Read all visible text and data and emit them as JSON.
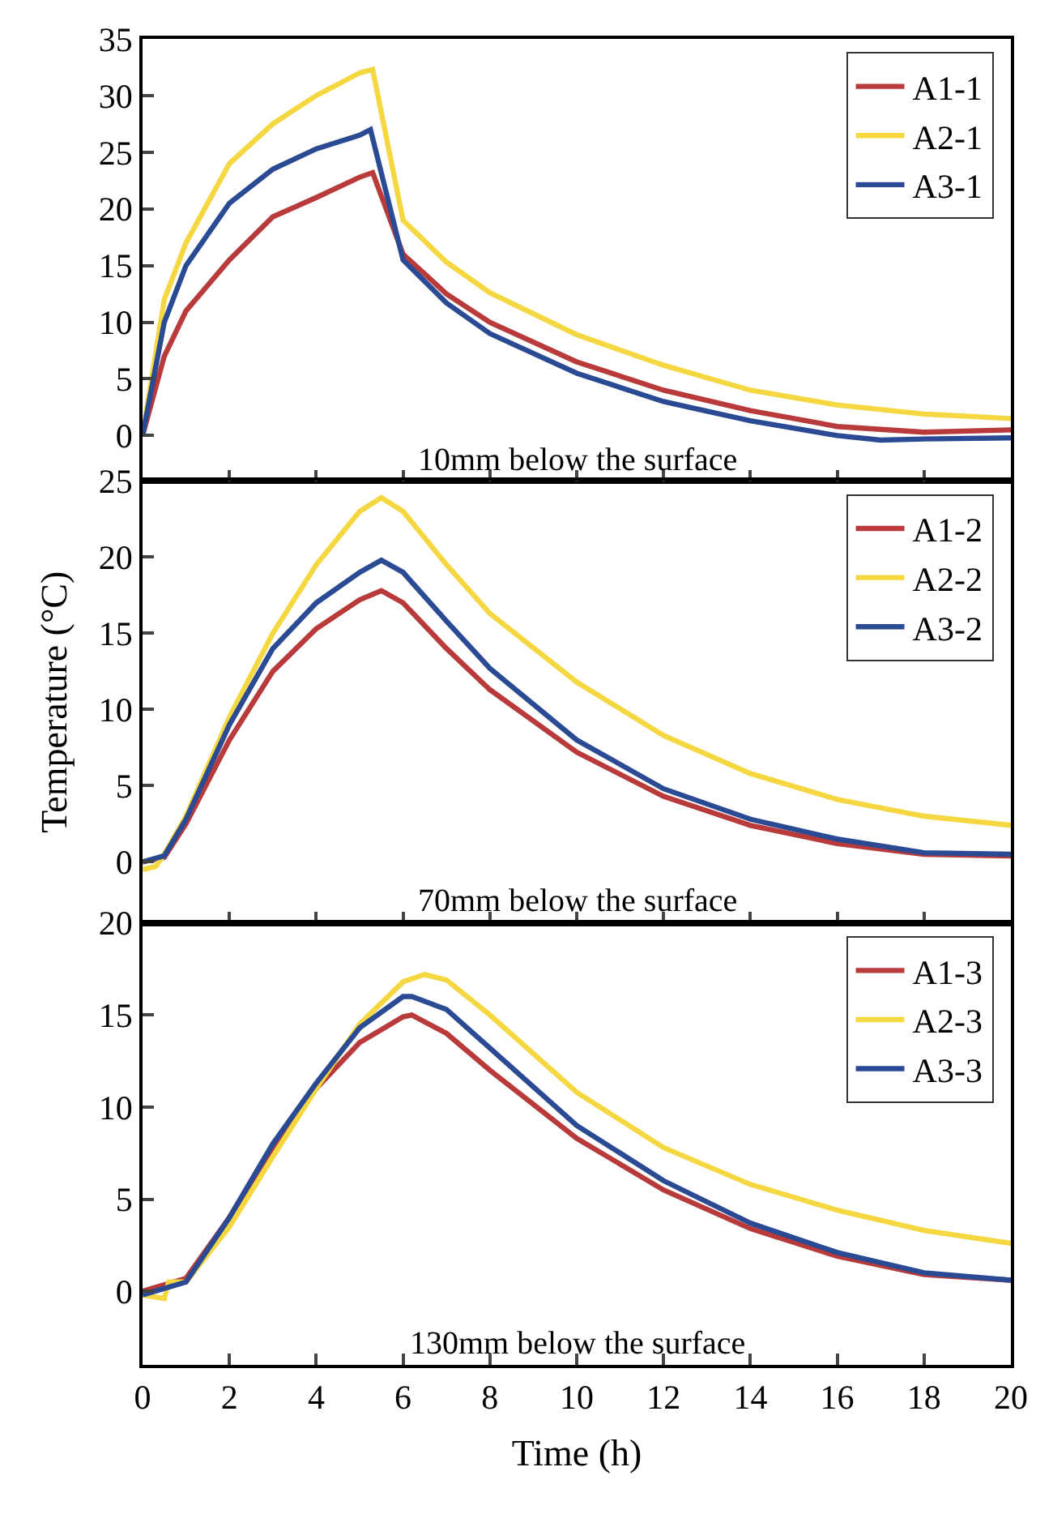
{
  "chart_data": [
    {
      "type": "line",
      "annotations": [
        "10mm below the surface"
      ],
      "xlim": [
        0,
        20
      ],
      "xticks": [
        0,
        2,
        4,
        6,
        8,
        10,
        12,
        14,
        16,
        18,
        20
      ],
      "ylim": [
        -4,
        35
      ],
      "yticks": [
        0,
        5,
        10,
        15,
        20,
        25,
        30,
        35
      ],
      "tick_labels": "y",
      "legend": "top right",
      "grid": false,
      "marker": "none",
      "line_style": "solid",
      "series": [
        {
          "name": "A1-1",
          "color": "#b83a3a",
          "x": [
            0,
            0.5,
            1,
            2,
            3,
            4,
            5,
            5.3,
            6,
            7,
            8,
            10,
            12,
            14,
            16,
            18,
            20
          ],
          "values": [
            0,
            7,
            11,
            15.5,
            19.3,
            21,
            22.8,
            23.2,
            16,
            12.5,
            10,
            6.5,
            4,
            2.2,
            0.8,
            0.3,
            0.5
          ]
        },
        {
          "name": "A2-1",
          "color": "#f5d742",
          "x": [
            0,
            0.5,
            1,
            2,
            3,
            4,
            5,
            5.3,
            6,
            7,
            8,
            10,
            12,
            14,
            16,
            18,
            20
          ],
          "values": [
            0,
            12,
            17,
            24,
            27.5,
            30,
            32,
            32.3,
            19,
            15.3,
            12.6,
            8.9,
            6.2,
            4,
            2.7,
            1.9,
            1.5
          ]
        },
        {
          "name": "A3-1",
          "color": "#2a4a94",
          "x": [
            0,
            0.5,
            1,
            2,
            3,
            4,
            5,
            5.25,
            6,
            7,
            8,
            10,
            12,
            14,
            16,
            17,
            18,
            20
          ],
          "values": [
            0,
            10,
            15,
            20.5,
            23.5,
            25.3,
            26.5,
            27,
            15.5,
            11.7,
            9,
            5.5,
            3,
            1.3,
            0,
            -0.4,
            -0.3,
            -0.2
          ]
        }
      ]
    },
    {
      "type": "line",
      "ylabel": "Temperature (°C)",
      "annotations": [
        "70mm below the surface"
      ],
      "xlim": [
        0,
        20
      ],
      "xticks": [
        0,
        2,
        4,
        6,
        8,
        10,
        12,
        14,
        16,
        18,
        20
      ],
      "ylim": [
        -4,
        25
      ],
      "yticks": [
        0,
        5,
        10,
        15,
        20,
        25
      ],
      "tick_labels": "y",
      "legend": "top right",
      "grid": false,
      "marker": "none",
      "line_style": "solid",
      "series": [
        {
          "name": "A1-2",
          "color": "#b83a3a",
          "x": [
            0,
            0.5,
            1,
            2,
            3,
            4,
            5,
            5.5,
            6,
            7,
            8,
            10,
            12,
            14,
            16,
            18,
            20
          ],
          "values": [
            0,
            0.3,
            2.5,
            8,
            12.5,
            15.3,
            17.2,
            17.8,
            17,
            14,
            11.3,
            7.2,
            4.3,
            2.4,
            1.2,
            0.5,
            0.4
          ]
        },
        {
          "name": "A2-2",
          "color": "#f5d742",
          "x": [
            0,
            0.3,
            0.5,
            1,
            2,
            3,
            4,
            5,
            5.5,
            6,
            7,
            8,
            10,
            12,
            14,
            16,
            18,
            20
          ],
          "values": [
            -0.5,
            -0.3,
            0.5,
            3,
            9.5,
            15,
            19.5,
            23,
            23.9,
            23,
            19.5,
            16.3,
            11.8,
            8.3,
            5.8,
            4.1,
            3,
            2.4
          ]
        },
        {
          "name": "A3-2",
          "color": "#2a4a94",
          "x": [
            0,
            0.5,
            1,
            2,
            3,
            4,
            5,
            5.5,
            6,
            7,
            8,
            10,
            12,
            14,
            16,
            18,
            20
          ],
          "values": [
            0,
            0.4,
            2.8,
            9,
            14,
            17,
            19,
            19.8,
            19,
            15.8,
            12.7,
            8,
            4.8,
            2.8,
            1.5,
            0.6,
            0.5
          ]
        }
      ]
    },
    {
      "type": "line",
      "xlabel": "Time (h)",
      "annotations": [
        "130mm below the surface"
      ],
      "xlim": [
        0,
        20
      ],
      "xticks": [
        0,
        2,
        4,
        6,
        8,
        10,
        12,
        14,
        16,
        18,
        20
      ],
      "ylim": [
        -4,
        20
      ],
      "yticks": [
        0,
        5,
        10,
        15,
        20
      ],
      "legend": "top right",
      "grid": false,
      "marker": "none",
      "line_style": "solid",
      "series": [
        {
          "name": "A1-3",
          "color": "#b83a3a",
          "x": [
            0,
            1,
            2,
            3,
            4,
            5,
            6,
            6.2,
            7,
            8,
            10,
            12,
            14,
            16,
            18,
            20
          ],
          "values": [
            0,
            0.7,
            4,
            7.8,
            11,
            13.5,
            14.9,
            15,
            14,
            12,
            8.3,
            5.5,
            3.4,
            1.9,
            0.9,
            0.6
          ]
        },
        {
          "name": "A2-3",
          "color": "#f5d742",
          "x": [
            0,
            0.5,
            0.6,
            1,
            2,
            3,
            4,
            5,
            6,
            6.5,
            7,
            8,
            10,
            12,
            14,
            16,
            18,
            20
          ],
          "values": [
            -0.2,
            -0.4,
            0.5,
            0.5,
            3.5,
            7.3,
            11,
            14.5,
            16.8,
            17.2,
            16.9,
            15,
            10.8,
            7.8,
            5.8,
            4.4,
            3.3,
            2.6
          ]
        },
        {
          "name": "A3-3",
          "color": "#2a4a94",
          "x": [
            0,
            1,
            2,
            3,
            4,
            5,
            6,
            6.2,
            7,
            8,
            10,
            12,
            14,
            16,
            18,
            20
          ],
          "values": [
            -0.2,
            0.5,
            4,
            8,
            11.3,
            14.3,
            16,
            16,
            15.3,
            13.2,
            9,
            6,
            3.7,
            2.1,
            1,
            0.6
          ]
        }
      ]
    }
  ]
}
